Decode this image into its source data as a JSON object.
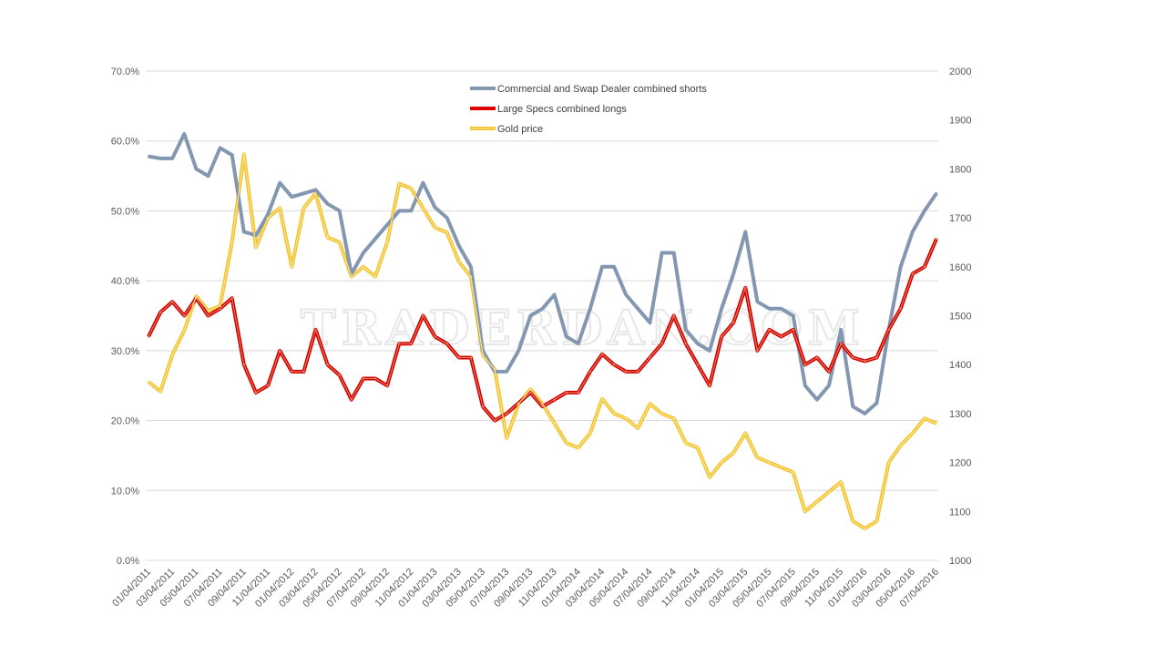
{
  "watermark": "TRADERDAN.COM",
  "chart_data": {
    "type": "line",
    "title": "",
    "legend_placement": "top-center",
    "grid": true,
    "x_tick_labels": [
      "01/04/2011",
      "03/04/2011",
      "05/04/2011",
      "07/04/2011",
      "09/04/2011",
      "11/04/2011",
      "01/04/2012",
      "03/04/2012",
      "05/04/2012",
      "07/04/2012",
      "09/04/2012",
      "11/04/2012",
      "01/04/2013",
      "03/04/2013",
      "05/04/2013",
      "07/04/2013",
      "09/04/2013",
      "11/04/2013",
      "01/04/2014",
      "03/04/2014",
      "05/04/2014",
      "07/04/2014",
      "09/04/2014",
      "11/04/2014",
      "01/04/2015",
      "03/04/2015",
      "05/04/2015",
      "07/04/2015",
      "09/04/2015",
      "11/04/2015",
      "01/04/2016",
      "03/04/2016",
      "05/04/2016",
      "07/04/2016"
    ],
    "x": [
      "2011-01",
      "2011-02",
      "2011-03",
      "2011-04",
      "2011-05",
      "2011-06",
      "2011-07",
      "2011-08",
      "2011-09",
      "2011-10",
      "2011-11",
      "2011-12",
      "2012-01",
      "2012-02",
      "2012-03",
      "2012-04",
      "2012-05",
      "2012-06",
      "2012-07",
      "2012-08",
      "2012-09",
      "2012-10",
      "2012-11",
      "2012-12",
      "2013-01",
      "2013-02",
      "2013-03",
      "2013-04",
      "2013-05",
      "2013-06",
      "2013-07",
      "2013-08",
      "2013-09",
      "2013-10",
      "2013-11",
      "2013-12",
      "2014-01",
      "2014-02",
      "2014-03",
      "2014-04",
      "2014-05",
      "2014-06",
      "2014-07",
      "2014-08",
      "2014-09",
      "2014-10",
      "2014-11",
      "2014-12",
      "2015-01",
      "2015-02",
      "2015-03",
      "2015-04",
      "2015-05",
      "2015-06",
      "2015-07",
      "2015-08",
      "2015-09",
      "2015-10",
      "2015-11",
      "2015-12",
      "2016-01",
      "2016-02",
      "2016-03",
      "2016-04",
      "2016-05",
      "2016-06",
      "2016-07"
    ],
    "y_left": {
      "min": 0,
      "max": 70,
      "step": 10,
      "format": "percent",
      "tick_labels": [
        "0.0%",
        "10.0%",
        "20.0%",
        "30.0%",
        "40.0%",
        "50.0%",
        "60.0%",
        "70.0%"
      ]
    },
    "y_right": {
      "min": 1000,
      "max": 2000,
      "step": 100,
      "tick_labels": [
        "1000",
        "1100",
        "1200",
        "1300",
        "1400",
        "1500",
        "1600",
        "1700",
        "1800",
        "1900",
        "2000"
      ]
    },
    "series": [
      {
        "name": "Commercial and Swap Dealer combined shorts",
        "axis": "left",
        "color": "#8497B0",
        "values": [
          57.8,
          57.5,
          57.5,
          61,
          56,
          55,
          59,
          58,
          47,
          46.5,
          49.5,
          54,
          52,
          52.5,
          53,
          51,
          50,
          41,
          44,
          46,
          48,
          50,
          50,
          54,
          50.5,
          49,
          45,
          42,
          30,
          27,
          27,
          30,
          35,
          36,
          38,
          32,
          31,
          36,
          42,
          42,
          38,
          36,
          34,
          44,
          44,
          33,
          31,
          30,
          36,
          41,
          47,
          37,
          36,
          36,
          35,
          25,
          23,
          25,
          33,
          22,
          21,
          22.5,
          33,
          42,
          47,
          50,
          52.5
        ]
      },
      {
        "name": "Large Specs combined longs",
        "axis": "left",
        "color": "#E00000",
        "values": [
          32,
          35.5,
          37,
          35,
          37.5,
          35,
          36,
          37.5,
          28,
          24,
          25,
          30,
          27,
          27,
          33,
          28,
          26.5,
          23,
          26,
          26,
          25,
          31,
          31,
          35,
          32,
          31,
          29,
          29,
          22,
          20,
          21,
          22.5,
          24,
          22,
          23,
          24,
          24,
          27,
          29.5,
          28,
          27,
          27,
          29,
          31,
          35,
          31,
          28,
          25,
          32,
          34,
          39,
          30,
          33,
          32,
          33,
          28,
          29,
          27,
          31,
          29,
          28.5,
          29,
          33,
          36,
          41,
          42,
          46
        ]
      },
      {
        "name": "Gold price",
        "axis": "right",
        "color": "#FFC000",
        "values": [
          1365,
          1345,
          1420,
          1470,
          1540,
          1510,
          1520,
          1650,
          1830,
          1640,
          1700,
          1720,
          1600,
          1720,
          1750,
          1660,
          1650,
          1580,
          1600,
          1580,
          1650,
          1770,
          1760,
          1720,
          1680,
          1670,
          1610,
          1580,
          1420,
          1390,
          1250,
          1320,
          1350,
          1320,
          1280,
          1240,
          1230,
          1260,
          1330,
          1300,
          1290,
          1270,
          1320,
          1300,
          1290,
          1240,
          1230,
          1170,
          1200,
          1220,
          1260,
          1210,
          1200,
          1190,
          1180,
          1100,
          1120,
          1140,
          1160,
          1080,
          1065,
          1080,
          1200,
          1235,
          1260,
          1290,
          1280
        ]
      }
    ]
  }
}
